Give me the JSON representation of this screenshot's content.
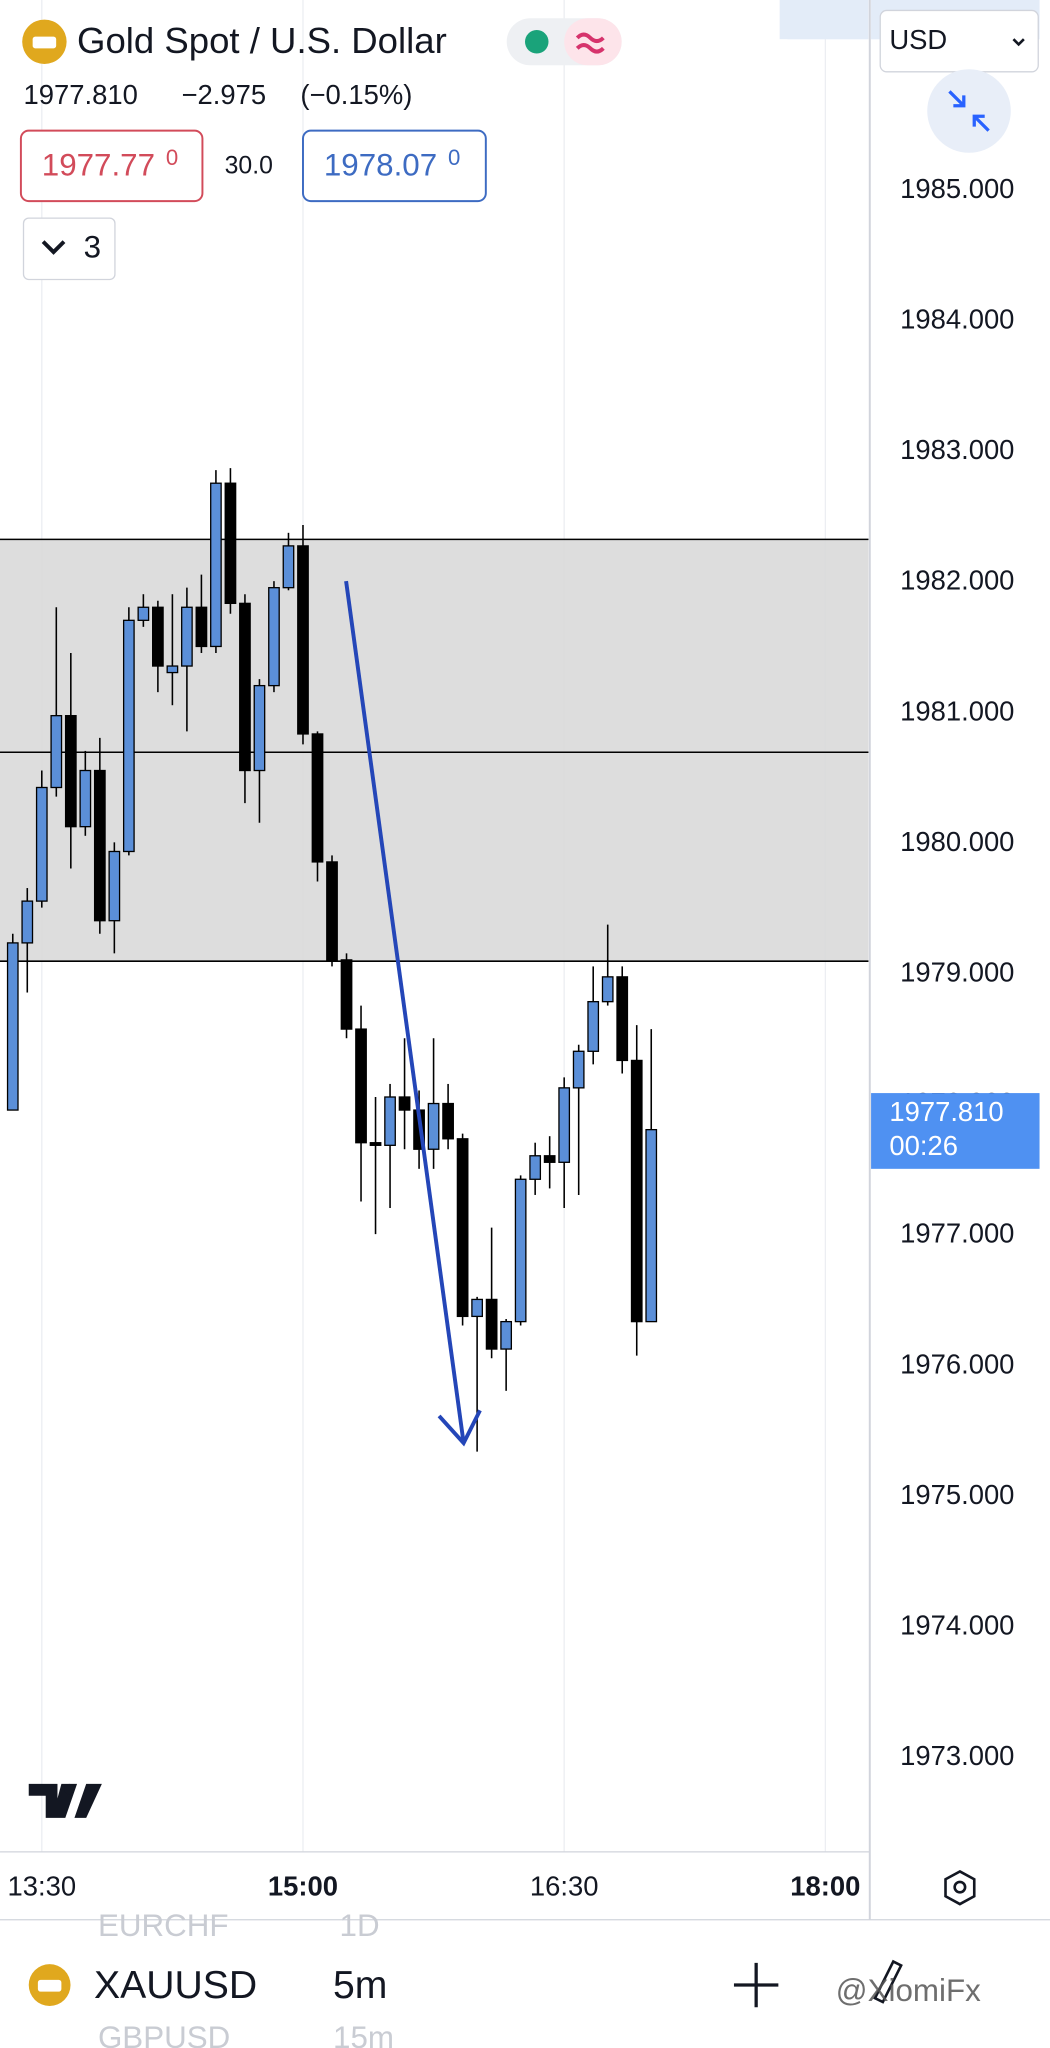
{
  "chart_data": {
    "type": "candlestick",
    "title": "Gold Spot / U.S. Dollar",
    "quote": {
      "last": "1977.810",
      "change": "−2.975",
      "change_pct": "(−0.15%)"
    },
    "bid": {
      "main": "1977.77",
      "small": "0"
    },
    "spread": "30.0",
    "ask": {
      "main": "1978.07",
      "small": "0"
    },
    "indicators_count": "3",
    "currency": "USD",
    "high": [
      1979.31,
      1979.66,
      1980.56,
      1981.81,
      1981.46,
      1980.71,
      1980.81,
      1980.01,
      1981.81,
      1981.91,
      1981.86,
      1981.91,
      1981.96,
      1982.06,
      1982.86,
      1982.875,
      1981.91,
      1981.26,
      1982.01,
      1982.38,
      1982.44,
      1980.86,
      1979.91,
      1979.16,
      1978.76,
      1978.06,
      1978.16,
      1978.51,
      1978.11,
      1978.51,
      1978.16,
      1977.78,
      1976.53,
      1977.06,
      1976.36,
      1977.46,
      1977.71,
      1977.76,
      1978.21,
      1978.46,
      1979.06,
      1979.38,
      1979.06,
      1978.61,
      1978.58
    ],
    "low": [
      1977.96,
      1978.86,
      1979.51,
      1980.36,
      1979.81,
      1980.06,
      1979.31,
      1979.16,
      1979.91,
      1981.66,
      1981.16,
      1981.06,
      1980.86,
      1981.46,
      1981.46,
      1981.76,
      1980.31,
      1980.16,
      1981.16,
      1981.94,
      1980.76,
      1979.71,
      1979.06,
      1978.51,
      1977.26,
      1977.01,
      1977.21,
      1977.66,
      1977.51,
      1977.51,
      1977.66,
      1976.31,
      1975.345,
      1976.06,
      1975.81,
      1976.31,
      1977.31,
      1977.36,
      1977.21,
      1977.31,
      1978.31,
      1978.76,
      1978.24,
      1976.08,
      1976.34
    ],
    "current": {
      "value": 1977.81,
      "value_label": "1977.810",
      "countdown": "00:26"
    },
    "up_color": "#5b8fd8",
    "down_color": "#000000",
    "grid": true,
    "xlim": [
      795.6,
      1094.85
    ],
    "ylim": [
      1972.28,
      1986.46
    ],
    "xticks": [
      {
        "value": 810,
        "label": "13:30",
        "bold": false
      },
      {
        "value": 900,
        "label": "15:00",
        "bold": true
      },
      {
        "value": 990,
        "label": "16:30",
        "bold": false
      },
      {
        "value": 1080,
        "label": "18:00",
        "bold": true
      }
    ],
    "yticks": [
      {
        "value": 1973,
        "label": "1973.000"
      },
      {
        "value": 1974,
        "label": "1974.000"
      },
      {
        "value": 1975,
        "label": "1975.000"
      },
      {
        "value": 1976,
        "label": "1976.000"
      },
      {
        "value": 1977,
        "label": "1977.000"
      },
      {
        "value": 1978,
        "label": "1978.000"
      },
      {
        "value": 1979,
        "label": "1979.000"
      },
      {
        "value": 1980,
        "label": "1980.000"
      },
      {
        "value": 1981,
        "label": "1981.000"
      },
      {
        "value": 1982,
        "label": "1982.000"
      },
      {
        "value": 1983,
        "label": "1983.000"
      },
      {
        "value": 1984,
        "label": "1984.000"
      },
      {
        "value": 1985,
        "label": "1985.000"
      }
    ],
    "x": [
      800,
      805,
      810,
      815,
      820,
      825,
      830,
      835,
      840,
      845,
      850,
      855,
      860,
      865,
      870,
      875,
      880,
      885,
      890,
      895,
      900,
      905,
      910,
      915,
      920,
      925,
      930,
      935,
      940,
      945,
      950,
      955,
      960,
      965,
      970,
      975,
      980,
      985,
      990,
      995,
      1000,
      1005,
      1010,
      1015,
      1020
    ],
    "open": [
      1977.96,
      1979.24,
      1979.56,
      1980.43,
      1980.98,
      1980.13,
      1980.56,
      1979.41,
      1979.94,
      1981.71,
      1981.81,
      1981.31,
      1981.36,
      1981.81,
      1981.51,
      1982.76,
      1981.84,
      1980.56,
      1981.21,
      1981.96,
      1982.28,
      1980.84,
      1979.86,
      1979.11,
      1978.58,
      1977.71,
      1977.69,
      1978.06,
      1977.96,
      1977.66,
      1978.01,
      1977.74,
      1976.38,
      1976.51,
      1976.13,
      1976.34,
      1977.43,
      1977.61,
      1977.56,
      1978.13,
      1978.41,
      1978.79,
      1978.98,
      1978.34,
      1976.34
    ],
    "close": [
      1979.24,
      1979.56,
      1980.43,
      1980.98,
      1980.13,
      1980.56,
      1979.41,
      1979.94,
      1981.71,
      1981.81,
      1981.36,
      1981.36,
      1981.81,
      1981.51,
      1982.76,
      1981.84,
      1980.56,
      1981.21,
      1981.96,
      1982.28,
      1980.84,
      1979.86,
      1979.11,
      1978.58,
      1977.71,
      1977.69,
      1978.06,
      1977.96,
      1977.66,
      1978.01,
      1977.74,
      1976.38,
      1976.51,
      1976.13,
      1976.34,
      1977.43,
      1977.61,
      1977.56,
      1978.13,
      1978.41,
      1978.79,
      1978.98,
      1978.34,
      1976.34,
      1977.81
    ],
    "zone": {
      "low": 1979.1,
      "mid": 1980.7,
      "high": 1982.33,
      "color": "#d9d9d9"
    },
    "arrow": {
      "x": [
        914.85,
        955.35
      ],
      "y": [
        1982.01,
        1975.41
      ],
      "color": "#2446b8"
    }
  },
  "bottom_bar": {
    "symbol": "XAUUSD",
    "interval": "5m",
    "prev_symbol": "EURCHF",
    "prev_interval": "1D",
    "next_symbol": "GBPUSD",
    "next_interval": "15m",
    "watermark": "@XiomiFx"
  }
}
